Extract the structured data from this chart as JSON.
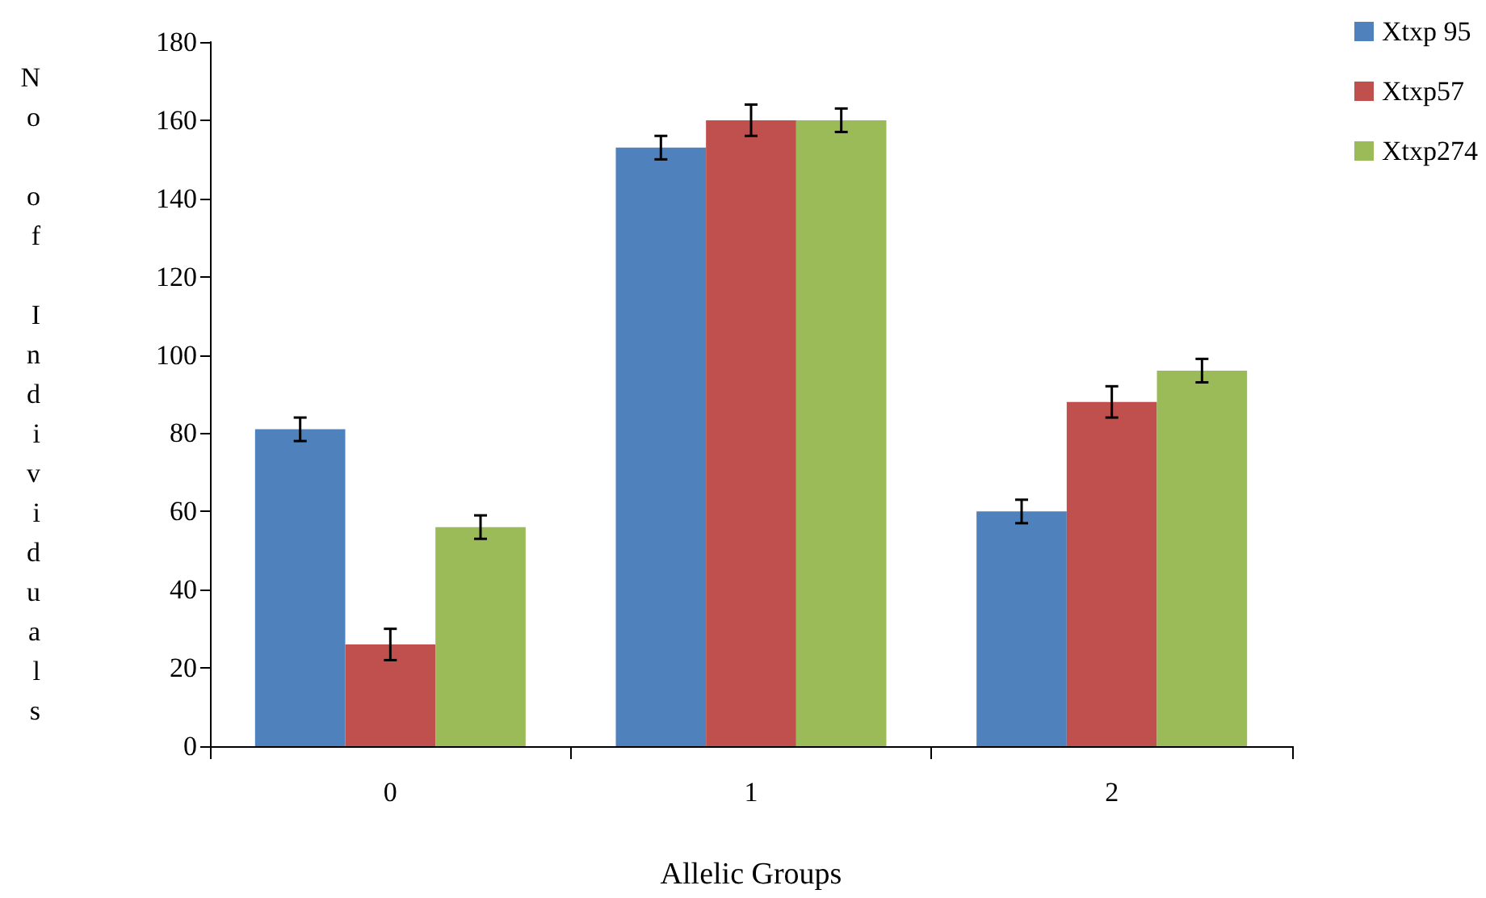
{
  "chart_data": {
    "type": "bar",
    "xlabel": "Allelic Groups",
    "ylabel": "No of Individuals",
    "categories": [
      "0",
      "1",
      "2"
    ],
    "series": [
      {
        "name": "Xtxp 95",
        "color": "#4f81bd",
        "values": [
          81,
          153,
          60
        ],
        "errors": [
          3,
          3,
          3
        ]
      },
      {
        "name": "Xtxp57",
        "color": "#c0504d",
        "values": [
          26,
          160,
          88
        ],
        "errors": [
          4,
          4,
          4
        ]
      },
      {
        "name": "Xtxp274",
        "color": "#9bbb59",
        "values": [
          56,
          160,
          96
        ],
        "errors": [
          3,
          3,
          3
        ]
      }
    ],
    "ylim": [
      0,
      180
    ],
    "yticks": [
      0,
      20,
      40,
      60,
      80,
      100,
      120,
      140,
      160,
      180
    ],
    "grid": false,
    "legend": "top right"
  }
}
